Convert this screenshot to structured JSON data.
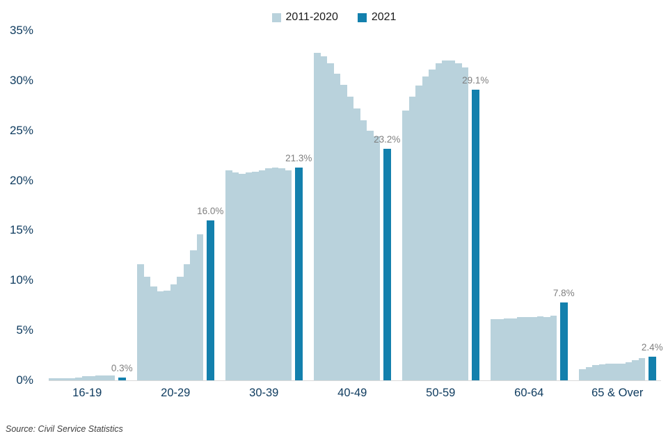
{
  "chart_data": {
    "type": "bar",
    "title": "",
    "xlabel": "",
    "ylabel": "",
    "ylim": [
      0,
      35
    ],
    "yticks": [
      0,
      5,
      10,
      15,
      20,
      25,
      30,
      35
    ],
    "ytick_labels": [
      "0%",
      "5%",
      "10%",
      "15%",
      "20%",
      "25%",
      "30%",
      "35%"
    ],
    "grid": false,
    "legend_position": "top-center",
    "legend": [
      {
        "name": "2011-2020",
        "color": "#b9d2dc"
      },
      {
        "name": "2021",
        "color": "#1380ad"
      }
    ],
    "categories": [
      "16-19",
      "20-29",
      "30-39",
      "40-49",
      "50-59",
      "60-64",
      "65 & Over"
    ],
    "groups": [
      {
        "category": "16-19",
        "values_2011_2020": [
          0.2,
          0.2,
          0.2,
          0.2,
          0.3,
          0.4,
          0.4,
          0.5,
          0.5,
          0.5
        ],
        "value_2021": 0.3,
        "label_2021": "0.3%"
      },
      {
        "category": "20-29",
        "values_2011_2020": [
          11.6,
          10.4,
          9.4,
          8.9,
          9.0,
          9.6,
          10.4,
          11.6,
          13.0,
          14.6
        ],
        "value_2021": 16.0,
        "label_2021": "16.0%"
      },
      {
        "category": "30-39",
        "values_2011_2020": [
          21.0,
          20.8,
          20.7,
          20.8,
          20.9,
          21.0,
          21.2,
          21.3,
          21.2,
          21.0
        ],
        "value_2021": 21.3,
        "label_2021": "21.3%"
      },
      {
        "category": "40-49",
        "values_2011_2020": [
          32.8,
          32.4,
          31.7,
          30.7,
          29.6,
          28.4,
          27.2,
          26.0,
          25.0,
          24.4
        ],
        "value_2021": 23.2,
        "label_2021": "23.2%"
      },
      {
        "category": "50-59",
        "values_2011_2020": [
          27.0,
          28.4,
          29.5,
          30.4,
          31.1,
          31.7,
          32.0,
          32.0,
          31.7,
          31.3
        ],
        "value_2021": 29.1,
        "label_2021": "29.1%"
      },
      {
        "category": "60-64",
        "values_2011_2020": [
          6.1,
          6.1,
          6.2,
          6.2,
          6.3,
          6.3,
          6.3,
          6.4,
          6.3,
          6.5
        ],
        "value_2021": 7.8,
        "label_2021": "7.8%"
      },
      {
        "category": "65 & Over",
        "values_2011_2020": [
          1.1,
          1.3,
          1.5,
          1.6,
          1.7,
          1.7,
          1.7,
          1.8,
          2.0,
          2.2
        ],
        "value_2021": 2.4,
        "label_2021": "2.4%"
      }
    ]
  },
  "source": "Source: Civil Service Statistics",
  "colors": {
    "series_2011_2020": "#b9d2dc",
    "series_2021": "#1380ad",
    "axis_text": "#0d3a5e",
    "data_label": "#7f7f7f",
    "legend_text": "#1a1a1a",
    "source_text": "#404040",
    "background": "#ffffff"
  }
}
